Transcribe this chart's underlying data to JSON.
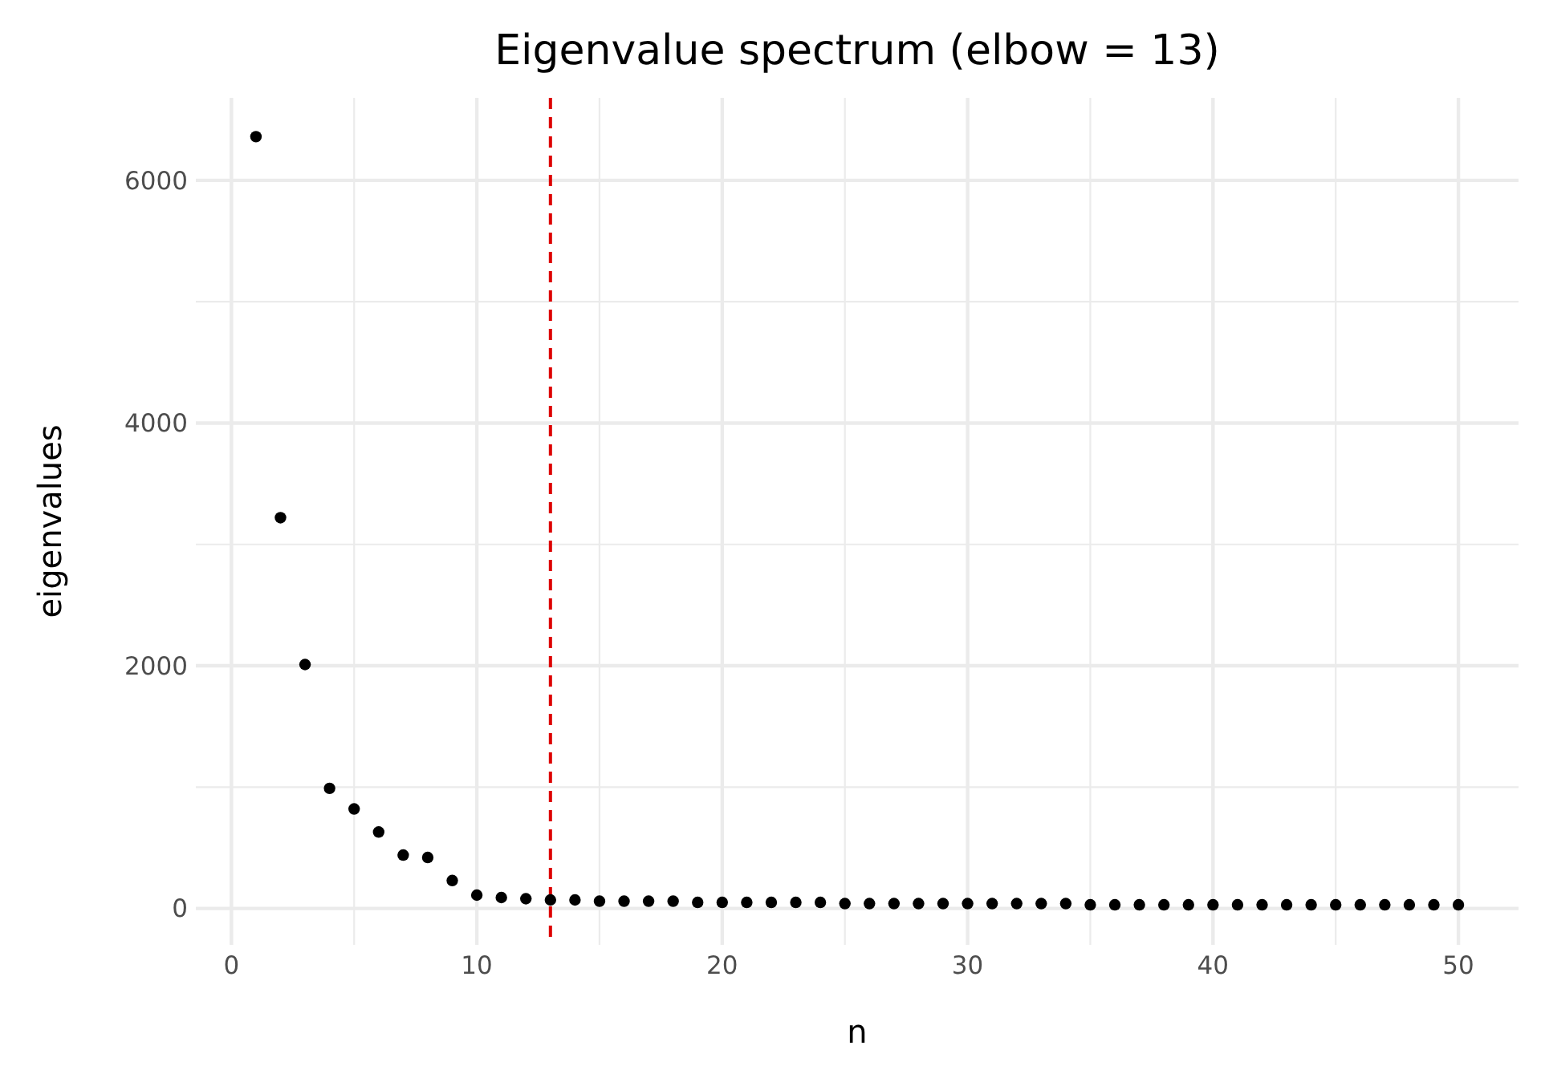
{
  "chart_data": {
    "type": "scatter",
    "title": "Eigenvalue spectrum (elbow = 13)",
    "xlabel": "n",
    "ylabel": "eigenvalues",
    "x": [
      1,
      2,
      3,
      4,
      5,
      6,
      7,
      8,
      9,
      10,
      11,
      12,
      13,
      14,
      15,
      16,
      17,
      18,
      19,
      20,
      21,
      22,
      23,
      24,
      25,
      26,
      27,
      28,
      29,
      30,
      31,
      32,
      33,
      34,
      35,
      36,
      37,
      38,
      39,
      40,
      41,
      42,
      43,
      44,
      45,
      46,
      47,
      48,
      49,
      50
    ],
    "series": [
      {
        "color": "#000000",
        "values": [
          6360,
          3220,
          2010,
          990,
          820,
          630,
          440,
          420,
          230,
          110,
          90,
          80,
          70,
          70,
          60,
          60,
          60,
          60,
          50,
          50,
          50,
          50,
          50,
          50,
          40,
          40,
          40,
          40,
          40,
          40,
          40,
          40,
          40,
          40,
          30,
          30,
          30,
          30,
          30,
          30,
          30,
          30,
          30,
          30,
          30,
          30,
          30,
          30,
          30,
          30
        ]
      }
    ],
    "xlim": [
      -1.45,
      52.45
    ],
    "ylim": [
      -300,
      6680
    ],
    "xticks": [
      0,
      {
        "value": 5,
        "label": null
      },
      10,
      {
        "value": 15,
        "label": null
      },
      20,
      {
        "value": 25,
        "label": null
      },
      30,
      {
        "value": 35,
        "label": null
      },
      40,
      {
        "value": 45,
        "label": null
      },
      50
    ],
    "yticks": [
      0,
      {
        "value": 1000,
        "label": null
      },
      2000,
      {
        "value": 3000,
        "label": null
      },
      4000,
      {
        "value": 5000,
        "label": null
      },
      6000
    ],
    "grid": true,
    "marker": "circle",
    "ref_lines": [
      {
        "axis": "x",
        "value": 13,
        "color": "#dd0000",
        "line_style": "dashed"
      }
    ]
  }
}
